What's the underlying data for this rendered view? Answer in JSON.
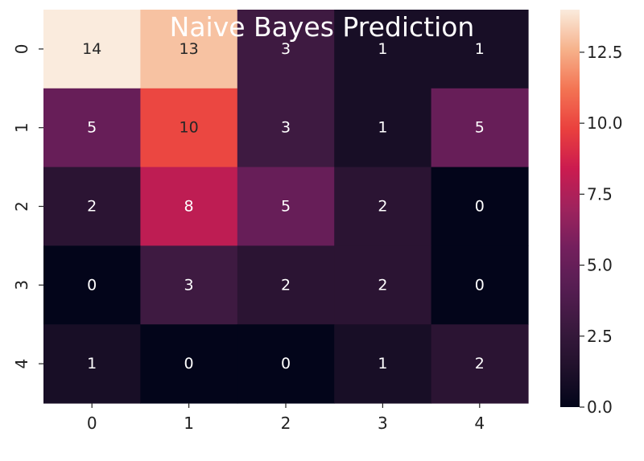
{
  "chart_data": {
    "type": "heatmap",
    "title": "Naive Bayes Prediction",
    "xlabel": "",
    "ylabel": "",
    "x_categories": [
      "0",
      "1",
      "2",
      "3",
      "4"
    ],
    "y_categories": [
      "0",
      "1",
      "2",
      "3",
      "4"
    ],
    "values": [
      [
        14,
        13,
        3,
        1,
        1
      ],
      [
        5,
        10,
        3,
        1,
        5
      ],
      [
        2,
        8,
        5,
        2,
        0
      ],
      [
        0,
        3,
        2,
        2,
        0
      ],
      [
        1,
        0,
        0,
        1,
        2
      ]
    ],
    "colorbar": {
      "range": [
        0,
        14
      ],
      "ticks": [
        "0.0",
        "2.5",
        "5.0",
        "7.5",
        "10.0",
        "12.5"
      ]
    },
    "colormap": "rocket",
    "annotated": true,
    "grid": false
  }
}
